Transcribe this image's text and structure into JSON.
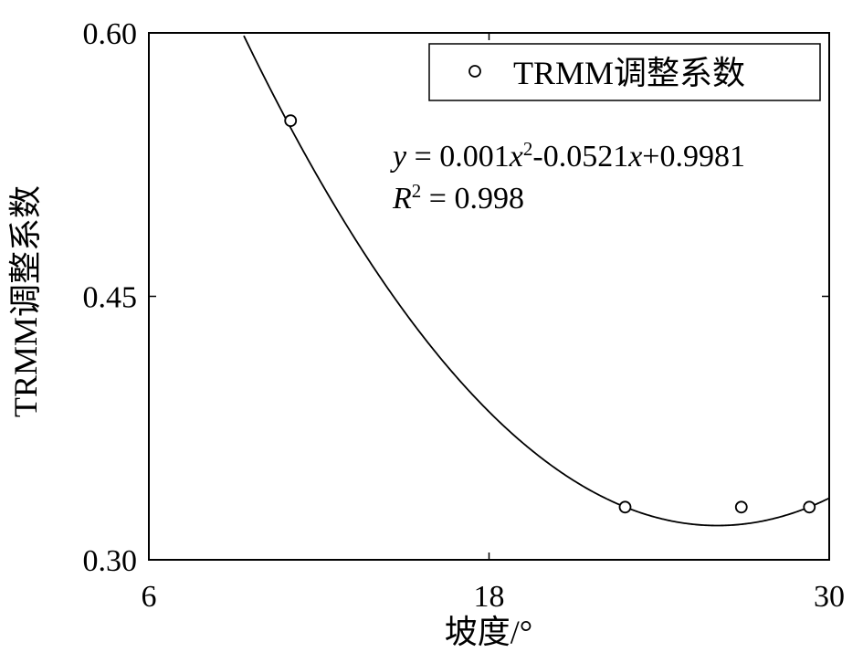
{
  "chart_data": {
    "type": "scatter",
    "title": "",
    "xlabel": "坡度/°",
    "ylabel": "TRMM调整系数",
    "xlim": [
      6,
      30
    ],
    "ylim": [
      0.3,
      0.6
    ],
    "xticks": [
      6,
      18,
      30
    ],
    "xtick_labels": [
      "6",
      "18",
      "30"
    ],
    "yticks": [
      0.3,
      0.45,
      0.6
    ],
    "ytick_labels": [
      "0.30",
      "0.45",
      "0.60"
    ],
    "grid": false,
    "legend_position": "top-right",
    "series": [
      {
        "name": "TRMM调整系数",
        "marker": "circle",
        "x": [
          11,
          22.8,
          26.9,
          29.3
        ],
        "y": [
          0.55,
          0.33,
          0.33,
          0.33
        ]
      }
    ],
    "fit": {
      "type": "quadratic",
      "coefficients": [
        0.001,
        -0.0521,
        0.9981
      ],
      "y_prefix": "y",
      "eq_sign": " = ",
      "c2": "0.001",
      "x": "x",
      "pow2": "2",
      "c1": "-0.0521",
      "c0": "+0.9981",
      "r2_prefix": "R",
      "r2_pow": "2",
      "r2_value": " = 0.998"
    }
  }
}
